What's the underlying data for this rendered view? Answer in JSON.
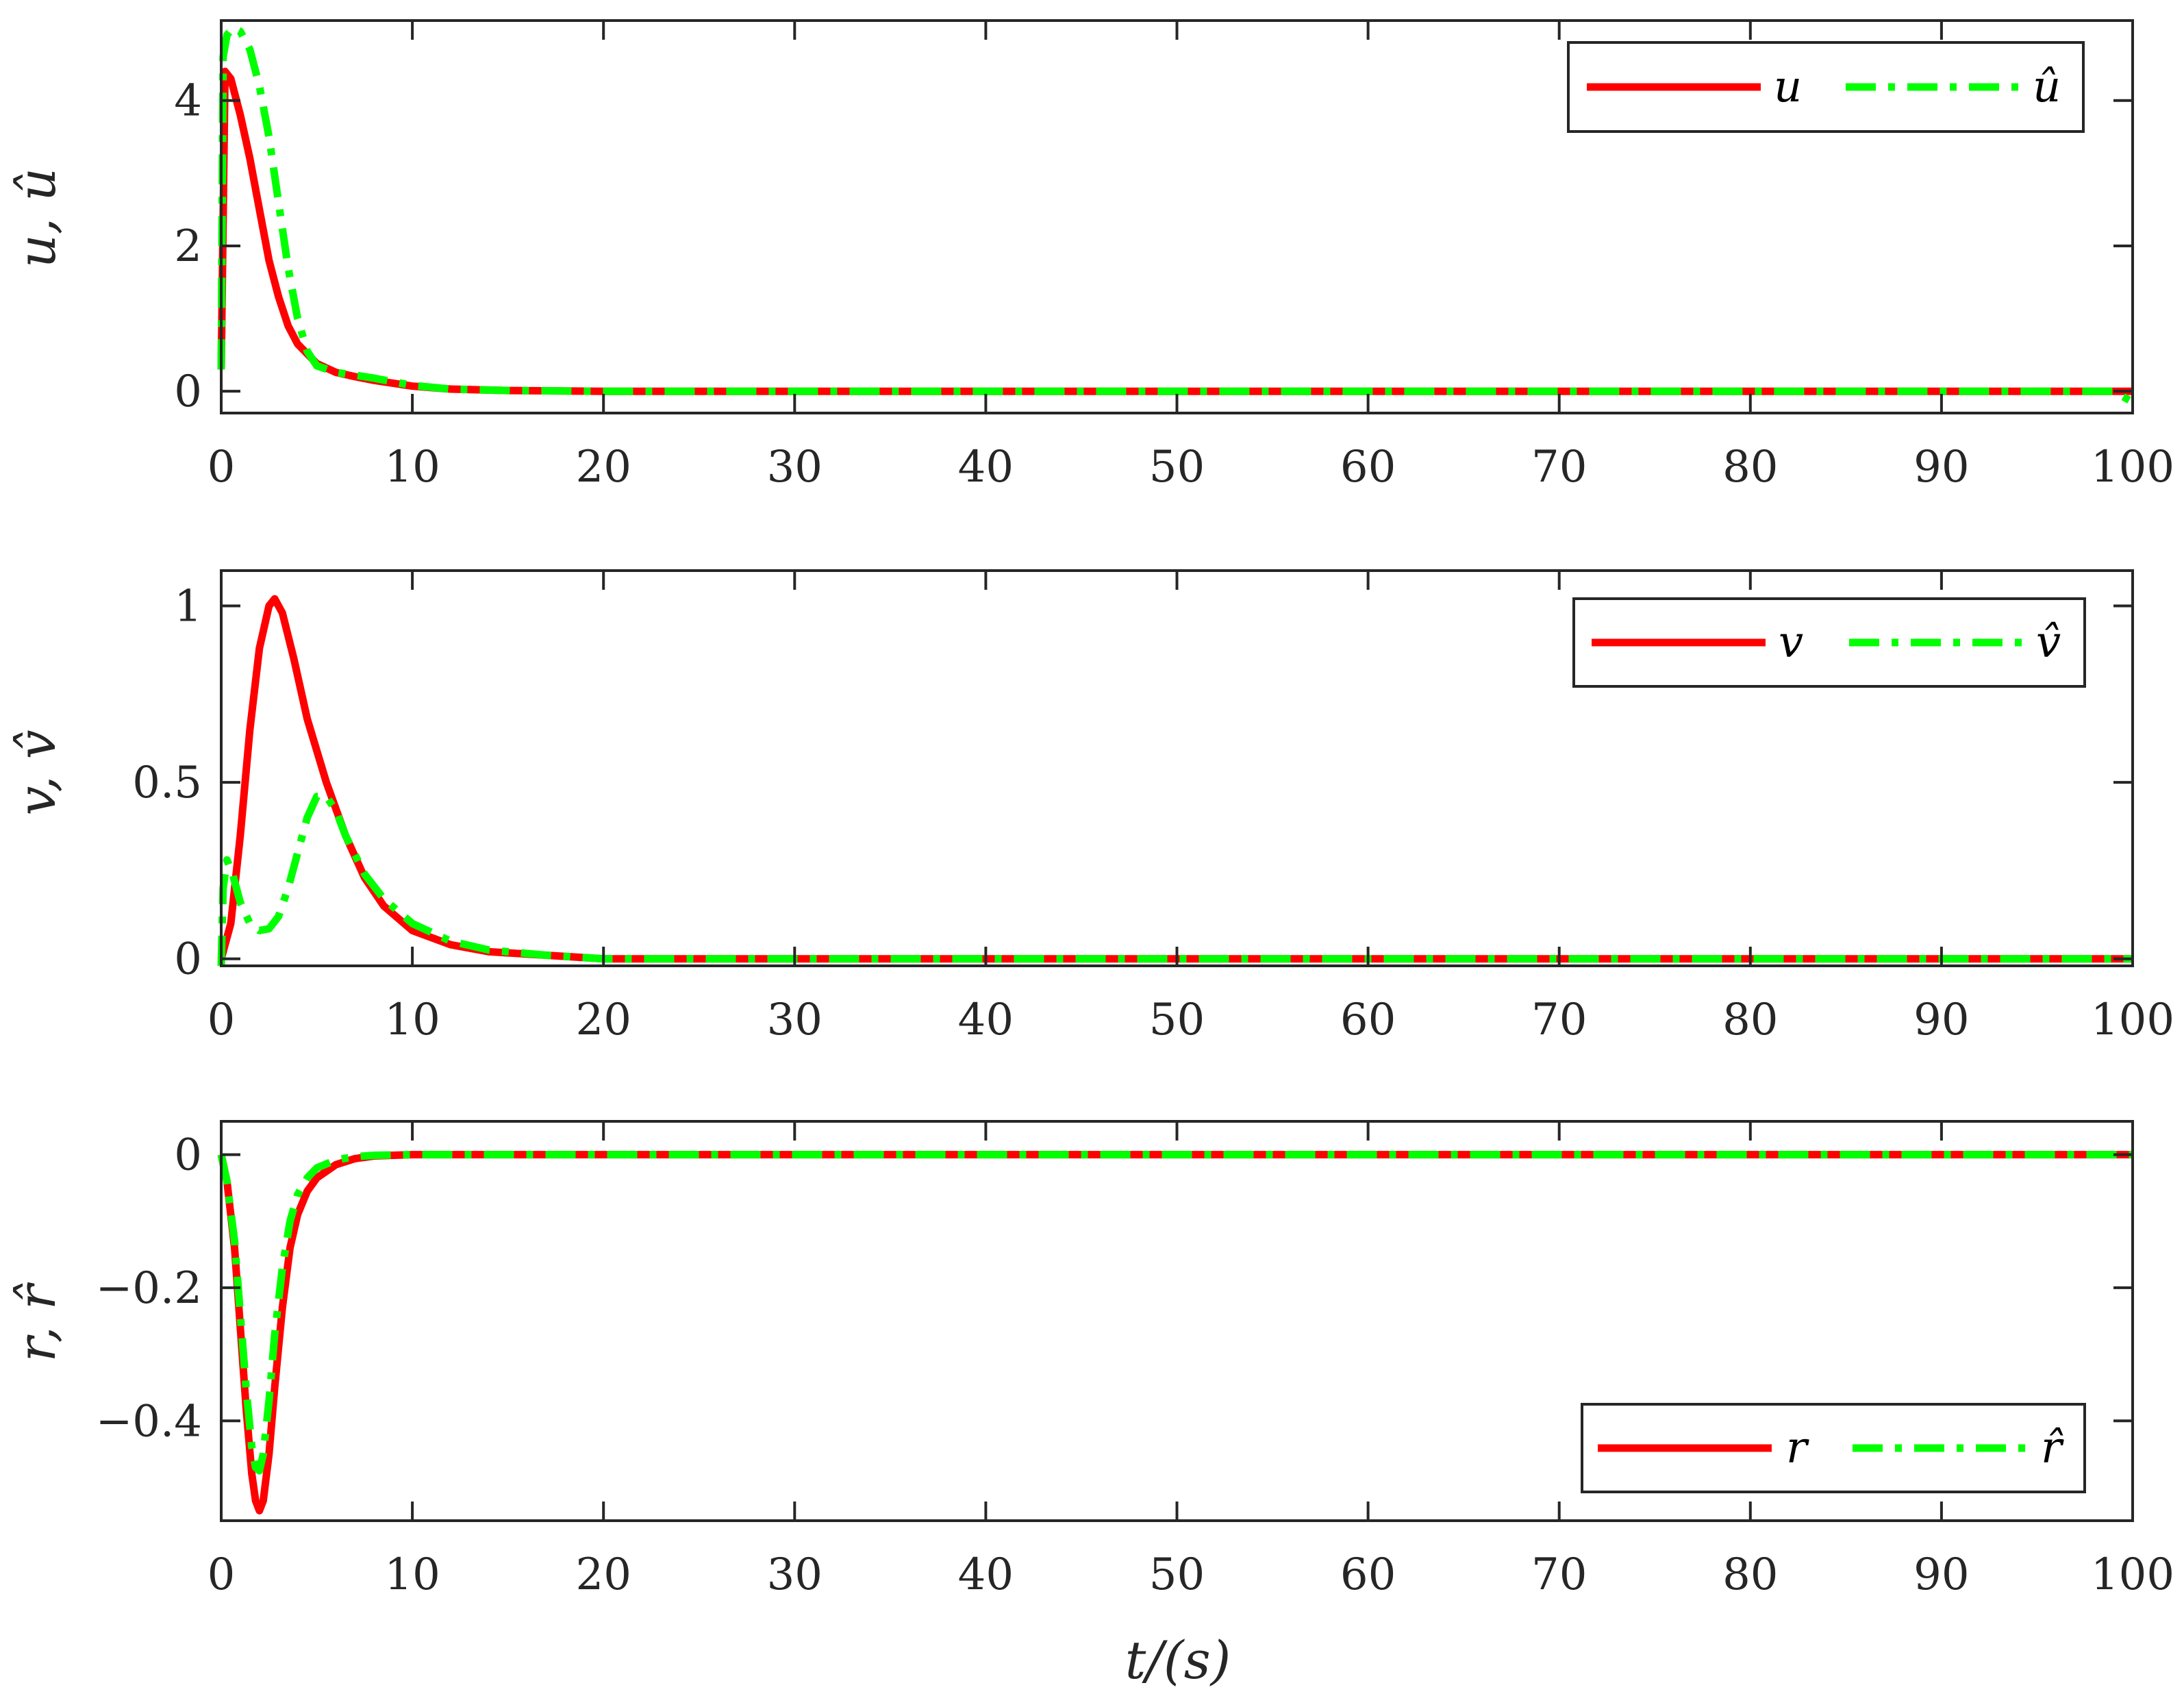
{
  "colors": {
    "estimate_line": "#00ff00",
    "true_line": "#ff0000",
    "axes": "#262626",
    "background": "#ffffff"
  },
  "chart_data": [
    {
      "type": "line",
      "ylabel": "u, û",
      "xlabel": "",
      "xlim": [
        0,
        100
      ],
      "ylim": [
        -0.3,
        5.1
      ],
      "xticks": [
        0,
        10,
        20,
        30,
        40,
        50,
        60,
        70,
        80,
        90,
        100
      ],
      "yticks": [
        0,
        2,
        4
      ],
      "ytick_labels": [
        "0",
        "2",
        "4"
      ],
      "xtick_labels": [
        "0",
        "10",
        "20",
        "30",
        "40",
        "50",
        "60",
        "70",
        "80",
        "90",
        "100"
      ],
      "grid": false,
      "legend_position": "top-right",
      "series": [
        {
          "name": "u",
          "style": "solid",
          "color": "#ff0000",
          "x": [
            0,
            0.2,
            0.5,
            1,
            1.5,
            2,
            2.5,
            3,
            3.5,
            4,
            5,
            6,
            7,
            8,
            10,
            12,
            15,
            20,
            30,
            50,
            70,
            90,
            100
          ],
          "y": [
            0.3,
            4.4,
            4.3,
            3.8,
            3.2,
            2.5,
            1.8,
            1.3,
            0.9,
            0.65,
            0.38,
            0.26,
            0.2,
            0.15,
            0.07,
            0.03,
            0.01,
            0,
            0,
            0,
            0,
            0,
            0
          ]
        },
        {
          "name": "û",
          "style": "dashdot",
          "color": "#00ff00",
          "x": [
            0,
            0.1,
            0.3,
            0.6,
            1,
            1.5,
            2,
            2.5,
            3,
            3.5,
            4,
            4.5,
            5,
            6,
            7,
            8,
            10,
            12,
            15,
            20,
            30,
            50,
            70,
            90,
            99,
            100
          ],
          "y": [
            0.3,
            4.6,
            4.9,
            5.0,
            4.95,
            4.7,
            4.2,
            3.5,
            2.6,
            1.7,
            1.0,
            0.55,
            0.35,
            0.26,
            0.22,
            0.18,
            0.08,
            0.03,
            0.01,
            0,
            0,
            0,
            0,
            0,
            0,
            -0.15
          ]
        }
      ]
    },
    {
      "type": "line",
      "ylabel": "v, v̂",
      "xlabel": "",
      "xlim": [
        0,
        100
      ],
      "ylim": [
        -0.02,
        1.1
      ],
      "xticks": [
        0,
        10,
        20,
        30,
        40,
        50,
        60,
        70,
        80,
        90,
        100
      ],
      "yticks": [
        0,
        0.5,
        1
      ],
      "ytick_labels": [
        "0",
        "0.5",
        "1"
      ],
      "xtick_labels": [
        "0",
        "10",
        "20",
        "30",
        "40",
        "50",
        "60",
        "70",
        "80",
        "90",
        "100"
      ],
      "grid": false,
      "legend_position": "top-right",
      "series": [
        {
          "name": "v",
          "style": "solid",
          "color": "#ff0000",
          "x": [
            0,
            0.5,
            1,
            1.5,
            2,
            2.5,
            2.8,
            3.2,
            3.8,
            4.5,
            5.5,
            6.5,
            7.5,
            8.5,
            10,
            12,
            14,
            17,
            20,
            30,
            50,
            70,
            90,
            100
          ],
          "y": [
            0,
            0.1,
            0.35,
            0.65,
            0.88,
            1.0,
            1.02,
            0.98,
            0.85,
            0.68,
            0.5,
            0.35,
            0.23,
            0.15,
            0.08,
            0.04,
            0.02,
            0.01,
            0,
            0,
            0,
            0,
            0,
            0
          ]
        },
        {
          "name": "v̂",
          "style": "dashdot",
          "color": "#00ff00",
          "x": [
            0,
            0.1,
            0.3,
            0.6,
            1,
            1.5,
            2,
            2.5,
            3,
            3.5,
            4,
            4.5,
            5,
            5.5,
            6,
            6.5,
            7.5,
            8.5,
            10,
            12,
            14,
            17,
            20,
            30,
            50,
            70,
            90,
            100
          ],
          "y": [
            -0.02,
            0.2,
            0.28,
            0.24,
            0.16,
            0.1,
            0.08,
            0.085,
            0.12,
            0.2,
            0.3,
            0.4,
            0.46,
            0.46,
            0.42,
            0.35,
            0.24,
            0.17,
            0.1,
            0.05,
            0.025,
            0.01,
            0,
            0,
            0,
            0,
            0,
            0
          ]
        }
      ]
    },
    {
      "type": "line",
      "ylabel": "r, r̂",
      "xlabel": "t/(s)",
      "xlim": [
        0,
        100
      ],
      "ylim": [
        -0.55,
        0.05
      ],
      "xticks": [
        0,
        10,
        20,
        30,
        40,
        50,
        60,
        70,
        80,
        90,
        100
      ],
      "yticks": [
        -0.4,
        -0.2,
        0
      ],
      "ytick_labels": [
        "−0.4",
        "−0.2",
        "0"
      ],
      "xtick_labels": [
        "0",
        "10",
        "20",
        "30",
        "40",
        "50",
        "60",
        "70",
        "80",
        "90",
        "100"
      ],
      "grid": false,
      "legend_position": "bottom-right",
      "series": [
        {
          "name": "r",
          "style": "solid",
          "color": "#ff0000",
          "x": [
            0,
            0.3,
            0.7,
            1,
            1.3,
            1.6,
            1.8,
            2,
            2.2,
            2.5,
            2.8,
            3.2,
            3.6,
            4,
            4.5,
            5,
            6,
            7,
            8,
            10,
            20,
            50,
            70,
            90,
            100
          ],
          "y": [
            0,
            -0.04,
            -0.14,
            -0.26,
            -0.38,
            -0.48,
            -0.52,
            -0.535,
            -0.52,
            -0.45,
            -0.35,
            -0.23,
            -0.14,
            -0.09,
            -0.055,
            -0.035,
            -0.015,
            -0.006,
            -0.002,
            0,
            0,
            0,
            0,
            0,
            0
          ]
        },
        {
          "name": "r̂",
          "style": "dashdot",
          "color": "#00ff00",
          "x": [
            0,
            0.3,
            0.7,
            1,
            1.3,
            1.6,
            1.8,
            2,
            2.2,
            2.5,
            2.8,
            3.2,
            3.6,
            4,
            4.5,
            5,
            6,
            7,
            8,
            10,
            20,
            50,
            70,
            90,
            100
          ],
          "y": [
            0,
            -0.04,
            -0.13,
            -0.24,
            -0.35,
            -0.44,
            -0.47,
            -0.475,
            -0.45,
            -0.37,
            -0.27,
            -0.17,
            -0.1,
            -0.06,
            -0.035,
            -0.02,
            -0.008,
            -0.003,
            -0.001,
            0,
            0,
            0,
            0,
            0,
            0
          ]
        }
      ]
    }
  ]
}
